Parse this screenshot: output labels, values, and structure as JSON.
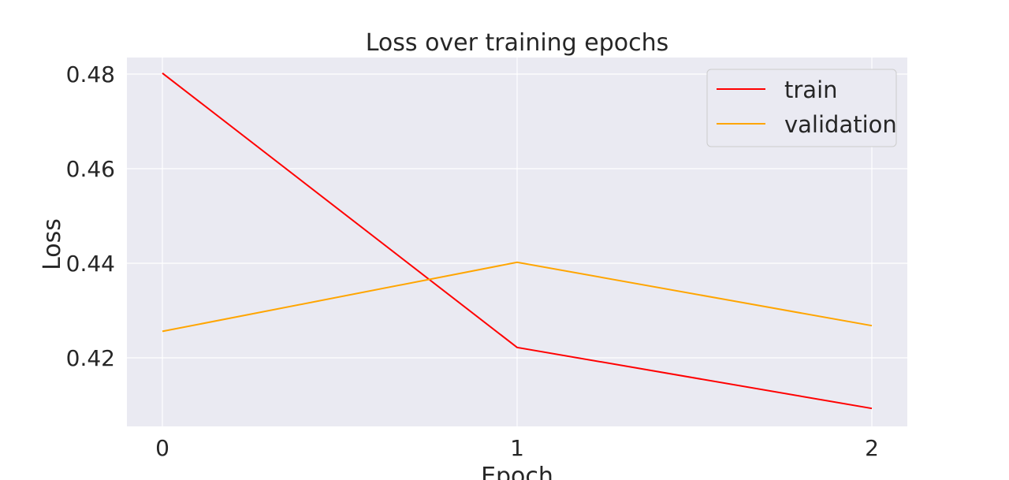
{
  "chart_data": {
    "type": "line",
    "title": "Loss over training epochs",
    "xlabel": "Epoch",
    "ylabel": "Loss",
    "x": [
      0,
      1,
      2
    ],
    "x_ticks": [
      "0",
      "1",
      "2"
    ],
    "y_ticks": [
      "0.42",
      "0.44",
      "0.46",
      "0.48"
    ],
    "ylim": [
      0.4055,
      0.4835
    ],
    "xlim": [
      -0.1,
      2.1
    ],
    "grid": true,
    "legend_position": "top-right",
    "series": [
      {
        "name": "train",
        "color": "#ff0000",
        "values": [
          0.4802,
          0.4222,
          0.4093
        ]
      },
      {
        "name": "validation",
        "color": "#ffa500",
        "values": [
          0.4256,
          0.4402,
          0.4268
        ]
      }
    ]
  }
}
